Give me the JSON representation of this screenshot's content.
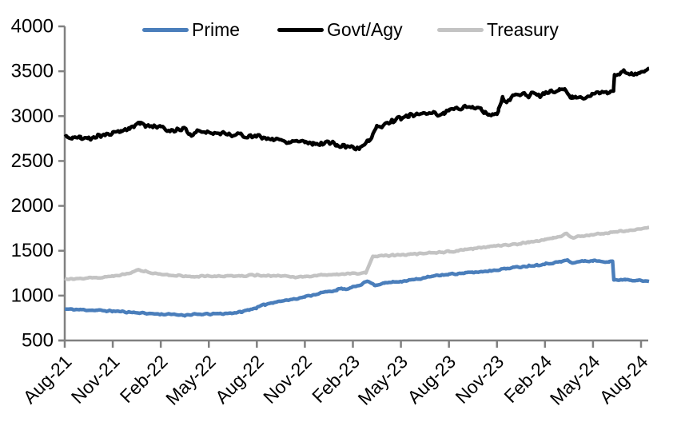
{
  "page": {
    "background": "#ffffff"
  },
  "legend": {
    "items": [
      {
        "label": "Prime",
        "color": "#4a7ebb"
      },
      {
        "label": "Govt/Agy",
        "color": "#000000"
      },
      {
        "label": "Treasury",
        "color": "#c3c3c3"
      }
    ]
  },
  "chart_data": {
    "type": "line",
    "title": "",
    "xlabel": "",
    "ylabel": "",
    "grid": false,
    "legend_position": "top",
    "axis_color": "#808080",
    "text_color": "#000000",
    "ylim": [
      500,
      4000
    ],
    "y_ticks": [
      500,
      1000,
      1500,
      2000,
      2500,
      3000,
      3500,
      4000
    ],
    "x_tick_labels": [
      "Aug-21",
      "Nov-21",
      "Feb-22",
      "May-22",
      "Aug-22",
      "Nov-22",
      "Feb-23",
      "May-23",
      "Aug-23",
      "Nov-23",
      "Feb-24",
      "May-24",
      "Aug-24"
    ],
    "x_tick_positions_months": [
      0,
      3,
      6,
      9,
      12,
      15,
      18,
      21,
      24,
      27,
      30,
      33,
      36
    ],
    "xlim_months": [
      0,
      36.5
    ],
    "series": [
      {
        "name": "Prime",
        "color": "#4a7ebb",
        "line_width": 4.5,
        "noise": 10,
        "seed": 11,
        "points": [
          [
            0,
            850
          ],
          [
            1,
            843
          ],
          [
            2,
            836
          ],
          [
            3,
            827
          ],
          [
            4,
            817
          ],
          [
            5,
            804
          ],
          [
            6,
            793
          ],
          [
            7,
            788
          ],
          [
            7.5,
            782
          ],
          [
            8,
            789
          ],
          [
            9,
            794
          ],
          [
            10,
            800
          ],
          [
            11,
            816
          ],
          [
            11.5,
            842
          ],
          [
            12,
            866
          ],
          [
            12.5,
            900
          ],
          [
            13,
            925
          ],
          [
            14,
            952
          ],
          [
            15,
            986
          ],
          [
            16,
            1030
          ],
          [
            17,
            1062
          ],
          [
            17.3,
            1080
          ],
          [
            17.6,
            1068
          ],
          [
            18,
            1092
          ],
          [
            18.5,
            1125
          ],
          [
            18.9,
            1162
          ],
          [
            19.4,
            1117
          ],
          [
            20,
            1140
          ],
          [
            20.5,
            1152
          ],
          [
            21,
            1160
          ],
          [
            21.5,
            1172
          ],
          [
            22,
            1182
          ],
          [
            22.5,
            1200
          ],
          [
            23,
            1215
          ],
          [
            23.5,
            1228
          ],
          [
            24,
            1238
          ],
          [
            24.5,
            1245
          ],
          [
            25,
            1252
          ],
          [
            25.5,
            1258
          ],
          [
            26,
            1266
          ],
          [
            26.5,
            1276
          ],
          [
            27,
            1288
          ],
          [
            27.5,
            1300
          ],
          [
            28,
            1312
          ],
          [
            28.5,
            1322
          ],
          [
            29,
            1332
          ],
          [
            29.5,
            1342
          ],
          [
            30,
            1352
          ],
          [
            30.5,
            1365
          ],
          [
            31,
            1378
          ],
          [
            31.4,
            1396
          ],
          [
            31.7,
            1360
          ],
          [
            32,
            1378
          ],
          [
            32.5,
            1385
          ],
          [
            33,
            1388
          ],
          [
            33.5,
            1382
          ],
          [
            34,
            1380
          ],
          [
            34.22,
            1386
          ],
          [
            34.3,
            1170
          ],
          [
            34.7,
            1178
          ],
          [
            35,
            1182
          ],
          [
            35.4,
            1176
          ],
          [
            35.8,
            1170
          ],
          [
            36.1,
            1162
          ],
          [
            36.5,
            1158
          ]
        ]
      },
      {
        "name": "Govt/Agy",
        "color": "#000000",
        "line_width": 4.5,
        "noise": 30,
        "seed": 5,
        "points": [
          [
            0,
            2770
          ],
          [
            0.5,
            2755
          ],
          [
            1,
            2760
          ],
          [
            1.5,
            2750
          ],
          [
            2,
            2780
          ],
          [
            3,
            2805
          ],
          [
            3.5,
            2830
          ],
          [
            4,
            2860
          ],
          [
            4.7,
            2930
          ],
          [
            5,
            2905
          ],
          [
            5.5,
            2880
          ],
          [
            6,
            2870
          ],
          [
            6.5,
            2845
          ],
          [
            7,
            2850
          ],
          [
            7.5,
            2865
          ],
          [
            7.85,
            2775
          ],
          [
            8.2,
            2835
          ],
          [
            9,
            2820
          ],
          [
            10,
            2805
          ],
          [
            11,
            2790
          ],
          [
            12,
            2772
          ],
          [
            13,
            2745
          ],
          [
            14,
            2715
          ],
          [
            14.5,
            2730
          ],
          [
            15,
            2718
          ],
          [
            15.5,
            2700
          ],
          [
            16,
            2695
          ],
          [
            16.5,
            2710
          ],
          [
            17,
            2675
          ],
          [
            17.5,
            2665
          ],
          [
            18,
            2650
          ],
          [
            18.4,
            2638
          ],
          [
            19,
            2730
          ],
          [
            19.5,
            2870
          ],
          [
            20,
            2915
          ],
          [
            20.5,
            2950
          ],
          [
            21,
            2975
          ],
          [
            21.5,
            3000
          ],
          [
            22,
            3020
          ],
          [
            22.5,
            3035
          ],
          [
            23,
            3048
          ],
          [
            23.4,
            3010
          ],
          [
            23.7,
            3035
          ],
          [
            24,
            3065
          ],
          [
            25,
            3110
          ],
          [
            25.5,
            3100
          ],
          [
            26,
            3090
          ],
          [
            26.2,
            3040
          ],
          [
            26.5,
            3005
          ],
          [
            26.8,
            3030
          ],
          [
            27.1,
            3060
          ],
          [
            27.35,
            3205
          ],
          [
            27.6,
            3155
          ],
          [
            27.9,
            3210
          ],
          [
            28.4,
            3240
          ],
          [
            28.9,
            3228
          ],
          [
            29.4,
            3252
          ],
          [
            29.6,
            3228
          ],
          [
            29.9,
            3245
          ],
          [
            30.4,
            3270
          ],
          [
            30.9,
            3295
          ],
          [
            31.1,
            3300
          ],
          [
            31.5,
            3250
          ],
          [
            31.7,
            3200
          ],
          [
            31.9,
            3210
          ],
          [
            32.4,
            3222
          ],
          [
            32.9,
            3235
          ],
          [
            33.4,
            3250
          ],
          [
            33.9,
            3268
          ],
          [
            34.2,
            3290
          ],
          [
            34.28,
            3290
          ],
          [
            34.34,
            3455
          ],
          [
            34.7,
            3470
          ],
          [
            34.9,
            3500
          ],
          [
            35.1,
            3490
          ],
          [
            35.4,
            3455
          ],
          [
            35.7,
            3465
          ],
          [
            35.9,
            3480
          ],
          [
            36.2,
            3500
          ],
          [
            36.5,
            3530
          ]
        ]
      },
      {
        "name": "Treasury",
        "color": "#c3c3c3",
        "line_width": 4.5,
        "noise": 10,
        "seed": 27,
        "points": [
          [
            0,
            1192
          ],
          [
            0.5,
            1188
          ],
          [
            1,
            1193
          ],
          [
            2,
            1200
          ],
          [
            3,
            1216
          ],
          [
            4,
            1248
          ],
          [
            4.6,
            1290
          ],
          [
            5,
            1272
          ],
          [
            5.5,
            1252
          ],
          [
            6,
            1240
          ],
          [
            6.5,
            1230
          ],
          [
            7,
            1224
          ],
          [
            8,
            1212
          ],
          [
            9,
            1216
          ],
          [
            10,
            1220
          ],
          [
            11,
            1222
          ],
          [
            12,
            1226
          ],
          [
            13,
            1222
          ],
          [
            14,
            1218
          ],
          [
            14.4,
            1200
          ],
          [
            15,
            1212
          ],
          [
            16,
            1226
          ],
          [
            17,
            1240
          ],
          [
            18,
            1250
          ],
          [
            18.8,
            1252
          ],
          [
            19.25,
            1435
          ],
          [
            19.6,
            1440
          ],
          [
            20,
            1443
          ],
          [
            20.5,
            1450
          ],
          [
            21,
            1455
          ],
          [
            21.5,
            1460
          ],
          [
            22,
            1466
          ],
          [
            22.5,
            1472
          ],
          [
            23,
            1480
          ],
          [
            23.5,
            1485
          ],
          [
            24,
            1490
          ],
          [
            24.5,
            1500
          ],
          [
            25,
            1512
          ],
          [
            25.5,
            1522
          ],
          [
            26,
            1532
          ],
          [
            26.5,
            1545
          ],
          [
            27,
            1556
          ],
          [
            27.5,
            1564
          ],
          [
            28,
            1572
          ],
          [
            28.5,
            1582
          ],
          [
            29,
            1596
          ],
          [
            29.5,
            1608
          ],
          [
            30,
            1622
          ],
          [
            30.5,
            1642
          ],
          [
            31,
            1662
          ],
          [
            31.35,
            1695
          ],
          [
            31.7,
            1645
          ],
          [
            32,
            1658
          ],
          [
            32.5,
            1668
          ],
          [
            33,
            1678
          ],
          [
            33.5,
            1690
          ],
          [
            34,
            1702
          ],
          [
            34.5,
            1710
          ],
          [
            35,
            1718
          ],
          [
            35.5,
            1732
          ],
          [
            36,
            1746
          ],
          [
            36.5,
            1760
          ]
        ]
      }
    ]
  }
}
